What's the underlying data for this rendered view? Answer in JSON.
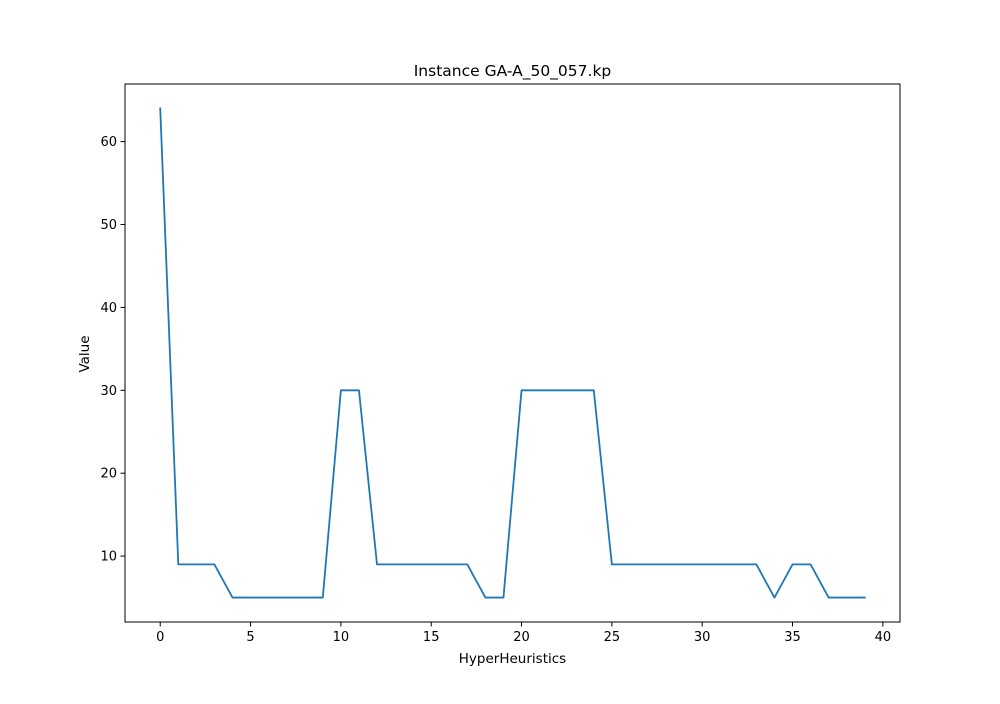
{
  "chart_data": {
    "type": "line",
    "title": "Instance GA-A_50_057.kp",
    "xlabel": "HyperHeuristics",
    "ylabel": "Value",
    "xlim": [
      -1.95,
      40.95
    ],
    "ylim": [
      2.05,
      66.95
    ],
    "xticks": [
      0,
      5,
      10,
      15,
      20,
      25,
      30,
      35,
      40
    ],
    "yticks": [
      10,
      20,
      30,
      40,
      50,
      60
    ],
    "grid": false,
    "legend": "none",
    "line_color": "#1f77b4",
    "series": [
      {
        "x": [
          0,
          1,
          2,
          3,
          4,
          5,
          6,
          7,
          8,
          9,
          10,
          11,
          12,
          13,
          14,
          15,
          16,
          17,
          18,
          19,
          20,
          21,
          22,
          23,
          24,
          25,
          26,
          27,
          28,
          29,
          30,
          31,
          32,
          33,
          34,
          35,
          36,
          37,
          38,
          39
        ],
        "values": [
          64,
          9,
          9,
          9,
          5,
          5,
          5,
          5,
          5,
          5,
          30,
          30,
          9,
          9,
          9,
          9,
          9,
          9,
          5,
          5,
          30,
          30,
          30,
          30,
          30,
          9,
          9,
          9,
          9,
          9,
          9,
          9,
          9,
          9,
          5,
          9,
          9,
          5,
          5,
          5
        ]
      }
    ]
  }
}
